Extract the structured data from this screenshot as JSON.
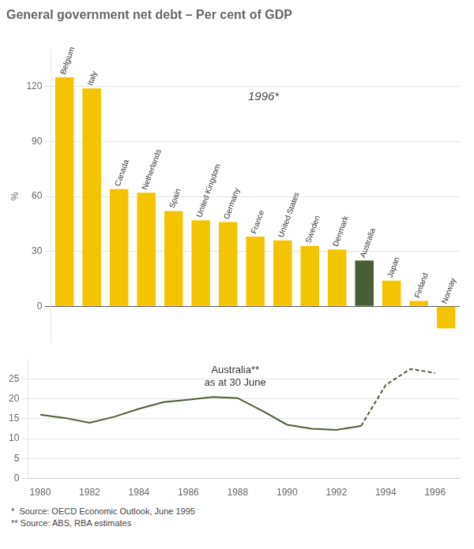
{
  "chart_data": [
    {
      "type": "bar",
      "title": "General government net debt – Per cent of GDP",
      "ylabel": "%",
      "categories": [
        "Belgium",
        "Italy",
        "Canada",
        "Netherlands",
        "Spain",
        "United Kingdom",
        "Germany",
        "France",
        "United States",
        "Sweden",
        "Denmark",
        "Australia",
        "Japan",
        "Finland",
        "Norway"
      ],
      "values": [
        125,
        119,
        64,
        62,
        52,
        47,
        46,
        38,
        36,
        33,
        31,
        25,
        14,
        3,
        -12
      ],
      "colors": [
        "#F5C400",
        "#F5C400",
        "#F5C400",
        "#F5C400",
        "#F5C400",
        "#F5C400",
        "#F5C400",
        "#F5C400",
        "#F5C400",
        "#F5C400",
        "#F5C400",
        "#4A5E35",
        "#F5C400",
        "#F5C400",
        "#F5C400"
      ],
      "ylim": [
        -20,
        140
      ],
      "yticks": [
        0,
        30,
        60,
        90,
        120
      ],
      "grid": true,
      "tick_labels": "y",
      "annotations": [
        "1996*"
      ]
    },
    {
      "type": "line",
      "x": [
        1980,
        1981,
        1982,
        1983,
        1984,
        1985,
        1986,
        1987,
        1988,
        1989,
        1990,
        1991,
        1992,
        1993,
        1994,
        1995,
        1996
      ],
      "series": [
        {
          "color": "#4A5E35",
          "line_style": "solid",
          "values": [
            16.0,
            15.2,
            14.0,
            15.5,
            17.5,
            19.2,
            19.8,
            20.5,
            20.2,
            17.0,
            13.5,
            12.5,
            12.2,
            13.2,
            null,
            null,
            null
          ]
        },
        {
          "color": "#4A5E35",
          "line_style": "dashed",
          "values": [
            null,
            null,
            null,
            null,
            null,
            null,
            null,
            null,
            null,
            null,
            null,
            null,
            null,
            13.2,
            23.5,
            27.5,
            26.5
          ]
        }
      ],
      "xlim": [
        1979.5,
        1997.0
      ],
      "xticks": [
        1980,
        1982,
        1984,
        1986,
        1988,
        1990,
        1992,
        1994,
        1996
      ],
      "ylim": [
        0,
        30
      ],
      "yticks": [
        0,
        5,
        10,
        15,
        20,
        25
      ],
      "grid": true,
      "annotations": [
        "Australia**",
        "as at 30 June"
      ],
      "footnotes": [
        "*  Source: OECD Economic Outlook, June 1995",
        "** Source: ABS, RBA estimates"
      ]
    }
  ]
}
